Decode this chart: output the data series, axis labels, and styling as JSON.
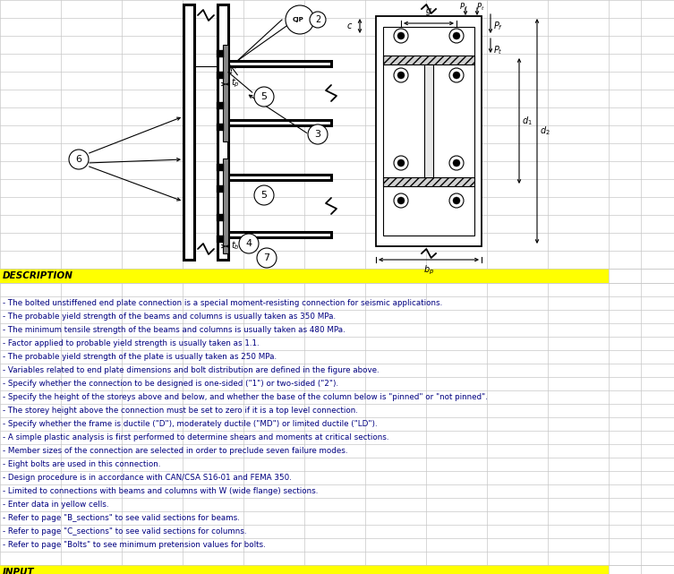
{
  "description_header": "DESCRIPTION",
  "input_header": "INPUT",
  "description_lines": [
    "- The bolted unstiffened end plate connection is a special moment-resisting connection for seismic applications.",
    "- The probable yield strength of the beams and columns is usually taken as 350 MPa.",
    "- The minimum tensile strength of the beams and columns is usually taken as 480 MPa.",
    "- Factor applied to probable yield strength is usually taken as 1.1.",
    "- The probable yield strength of the plate is usually taken as 250 MPa.",
    "- Variables related to end plate dimensions and bolt distribution are defined in the figure above.",
    "- Specify whether the connection to be designed is one-sided (\"1\") or two-sided (\"2\").",
    "- Specify the height of the storeys above and below, and whether the base of the column below is \"pinned\" or \"not pinned\".",
    "- The storey height above the connection must be set to zero if it is a top level connection.",
    "- Specify whether the frame is ductile (\"D\"), moderately ductile (\"MD\") or limited ductile (\"LD\").",
    "- A simple plastic analysis is first performed to determine shears and moments at critical sections.",
    "- Member sizes of the connection are selected in order to preclude seven failure modes.",
    "- Eight bolts are used in this connection.",
    "- Design procedure is in accordance with CAN/CSA S16-01 and FEMA 350.",
    "- Limited to connections with beams and columns with W (wide flange) sections.",
    "- Enter data in yellow cells.",
    "- Refer to page \"B_sections\" to see valid sections for beams.",
    "- Refer to page \"C_sections\" to see valid sections for columns.",
    "- Refer to page \"Bolts\" to see minimum pretension values for bolts."
  ],
  "yellow_color": "#FFFF00",
  "header_text_color": "#000000",
  "desc_text_color": "#000080",
  "grid_color": "#C8C8C8",
  "background_color": "#FFFFFF",
  "figure_width": 7.53,
  "figure_height": 6.41
}
